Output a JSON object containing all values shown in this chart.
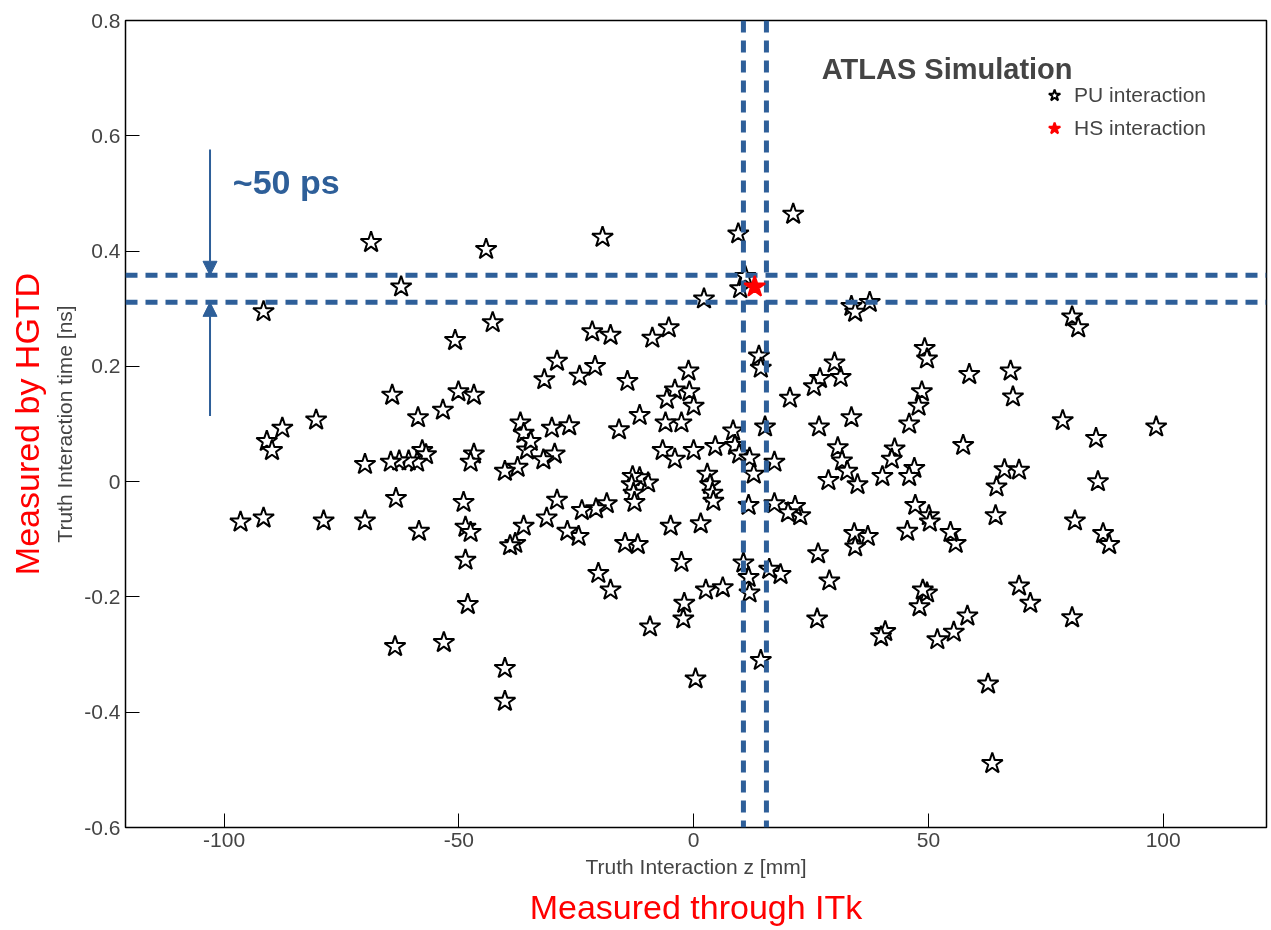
{
  "chart_data": {
    "type": "scatter",
    "xlabel": "Truth Interaction z [mm]",
    "ylabel": "Truth Interaction time [ns]",
    "annotations": [
      "ATLAS Simulation",
      {
        "text": "~50 ps",
        "x": -103,
        "y": 0.358
      },
      "Measured by HGTD",
      "Measured through ITk"
    ],
    "xlim": [
      -121,
      122
    ],
    "ylim": [
      -0.6,
      0.8
    ],
    "xticks": [
      -100,
      -50,
      0,
      50,
      100
    ],
    "yticks": [
      -0.6,
      -0.4,
      -0.2,
      0,
      0.2,
      0.4,
      0.6,
      0.8
    ],
    "grid": false,
    "legend": "top right",
    "marker": "star",
    "ref_lines": [
      {
        "axis": "y",
        "value": 0.358,
        "label": null,
        "color": "#2e5f99",
        "line_style": "dashed"
      },
      {
        "axis": "y",
        "value": 0.311,
        "label": null,
        "color": "#2e5f99",
        "line_style": "dashed"
      },
      {
        "axis": "x",
        "value": 10.6,
        "label": null,
        "color": "#2e5f99",
        "line_style": "dashed"
      },
      {
        "axis": "x",
        "value": 15.5,
        "label": null,
        "color": "#2e5f99",
        "line_style": "dashed"
      }
    ],
    "series": [
      {
        "name": "PU interaction",
        "color": "#000000",
        "x": [
          -68.7,
          -62.3,
          -91.6,
          -44.2,
          -42.8,
          -19.4,
          9.5,
          9.9,
          11,
          2.2,
          21.2,
          33.6,
          34.4,
          37.5,
          80.6,
          81.9,
          98.5,
          78.6,
          85.7,
          86.1,
          87.2,
          88.5,
          81.2,
          80.6,
          71.7,
          69.3,
          66.2,
          69.3,
          67.5,
          68,
          64.5,
          64.3,
          63.6,
          62.7,
          58.7,
          57.4,
          58.3,
          55.4,
          51.9,
          55.8,
          54.7,
          49.2,
          49.7,
          48.6,
          47.9,
          47,
          45.9,
          47.2,
          50.1,
          50.3,
          45.5,
          45.9,
          49.7,
          48.1,
          48.8,
          40.2,
          37.1,
          34.2,
          34.4,
          40.8,
          39.9,
          42.8,
          42.2,
          31.3,
          30,
          26.9,
          25.6,
          30.7,
          31.6,
          32.7,
          34.9,
          33.6,
          28.7,
          20.5,
          26.7,
          26.5,
          28.9,
          26.3,
          22.7,
          21.6,
          20.1,
          17.2,
          18.5,
          14.3,
          16.1,
          13.9,
          14.3,
          15.2,
          17.2,
          8.4,
          8.8,
          9.7,
          11.9,
          12.8,
          11.7,
          10.6,
          11.7,
          11.9,
          6.2,
          2.6,
          -2.6,
          -2,
          -2.2,
          -9.3,
          0.4,
          0,
          1.5,
          2.9,
          3.5,
          4,
          4.2,
          4.6,
          -1.1,
          -0.9,
          0,
          -4,
          -5.7,
          -5.3,
          -8.8,
          -2.6,
          -6,
          -6.6,
          -4,
          -11.5,
          -9.7,
          -11.5,
          -4.9,
          -14.1,
          -17.7,
          -21.6,
          -21,
          -24.3,
          -15.9,
          -13,
          -13.2,
          -12.8,
          -12.6,
          -11.9,
          -14.6,
          -18.5,
          -20.8,
          -23.8,
          -24.5,
          -26.9,
          -20.3,
          -17.7,
          -29.1,
          -31.8,
          -30.2,
          -26.5,
          -29.6,
          -32,
          -29.1,
          -31.3,
          -35.5,
          -36.9,
          -36.2,
          -34.7,
          -37.5,
          -40.2,
          -36.2,
          -38,
          -39.1,
          -40.2,
          -40.2,
          -46.8,
          -50.1,
          -50.8,
          -53.4,
          -46.8,
          -47.5,
          -49,
          -48.6,
          -47.5,
          -48.6,
          -48.1,
          -53.2,
          -58.7,
          -57.8,
          -57,
          -58.9,
          -58.5,
          -60.7,
          -64.2,
          -62.7,
          -64.5,
          -63.4,
          -63.6,
          -70,
          -70,
          -80.4,
          -78.8,
          -87.6,
          -90.9,
          -89.8,
          -91.6,
          -96.5
        ],
        "values": [
          0.415,
          0.338,
          0.295,
          0.403,
          0.276,
          0.424,
          0.43,
          0.335,
          0.356,
          0.317,
          0.464,
          0.304,
          0.294,
          0.311,
          0.286,
          0.267,
          0.095,
          0.106,
          0.075,
          0.0,
          -0.09,
          -0.109,
          -0.068,
          -0.236,
          -0.211,
          -0.181,
          0.021,
          0.02,
          0.192,
          0.147,
          -0.009,
          -0.059,
          -0.489,
          -0.351,
          0.186,
          0.063,
          -0.233,
          -0.261,
          -0.274,
          -0.107,
          -0.088,
          0.231,
          0.213,
          0.156,
          0.131,
          0.023,
          0.009,
          -0.041,
          -0.059,
          -0.07,
          -0.086,
          0.1,
          -0.193,
          -0.217,
          -0.188,
          0.009,
          -0.095,
          -0.09,
          -0.113,
          -0.26,
          -0.269,
          0.057,
          0.039,
          0.181,
          0.206,
          0.179,
          0.165,
          0.059,
          0.036,
          0.018,
          -0.005,
          0.111,
          0.002,
          0.145,
          0.095,
          -0.125,
          -0.172,
          -0.238,
          -0.059,
          -0.043,
          -0.054,
          -0.038,
          -0.161,
          -0.31,
          -0.152,
          0.218,
          0.197,
          0.095,
          0.034,
          0.088,
          0.063,
          0.048,
          0.041,
          0.013,
          -0.041,
          -0.141,
          -0.166,
          -0.193,
          -0.184,
          -0.188,
          -0.14,
          -0.211,
          -0.238,
          -0.252,
          -0.342,
          0.054,
          -0.073,
          0.013,
          -0.005,
          -0.02,
          -0.034,
          0.061,
          0.192,
          0.156,
          0.131,
          0.159,
          0.143,
          0.267,
          0.249,
          0.102,
          0.102,
          0.054,
          0.039,
          0.115,
          -0.002,
          0.007,
          -0.077,
          0.174,
          0.254,
          0.26,
          0.2,
          0.183,
          0.09,
          0.009,
          -0.005,
          -0.02,
          -0.036,
          -0.109,
          -0.107,
          -0.038,
          -0.047,
          -0.05,
          -0.095,
          -0.086,
          -0.159,
          -0.188,
          0.209,
          0.177,
          0.093,
          0.097,
          0.048,
          0.038,
          -0.032,
          -0.063,
          0.055,
          0.102,
          0.084,
          0.07,
          0.025,
          0.018,
          -0.077,
          -0.107,
          -0.111,
          -0.324,
          -0.381,
          0.15,
          0.156,
          0.245,
          0.124,
          0.048,
          0.034,
          -0.036,
          -0.079,
          -0.088,
          -0.136,
          -0.213,
          -0.279,
          0.111,
          0.054,
          0.047,
          0.034,
          -0.086,
          0.036,
          0.15,
          0.036,
          0.034,
          -0.029,
          -0.286,
          0.03,
          -0.068,
          0.107,
          -0.068,
          0.093,
          0.07,
          0.054,
          -0.063,
          -0.07
        ]
      },
      {
        "name": "HS interaction",
        "color": "#ff0000",
        "x": [
          13
        ],
        "values": [
          0.338
        ]
      }
    ]
  }
}
